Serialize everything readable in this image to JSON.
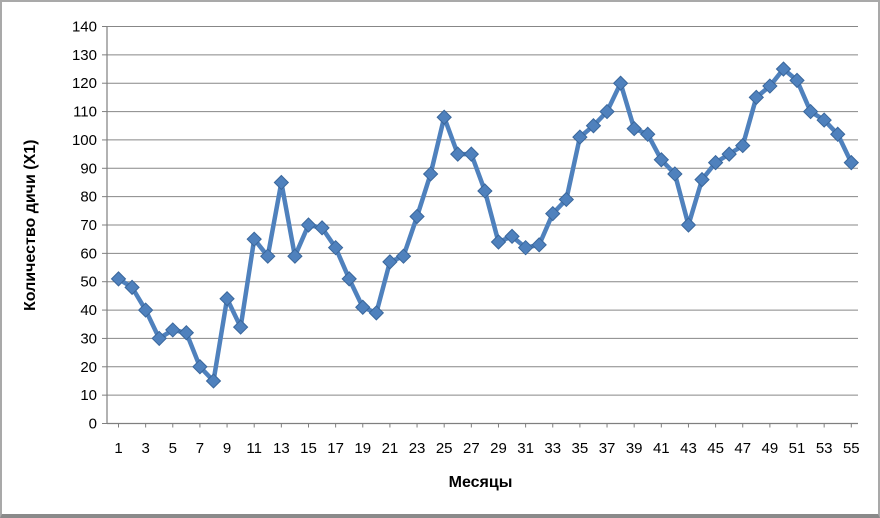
{
  "window": {
    "background": "#ffffff",
    "border_color": "#a9a9a9"
  },
  "chart_data": {
    "type": "line",
    "title": "",
    "xlabel": "Месяцы",
    "ylabel": "Количество дичи (Х1)",
    "x": [
      1,
      2,
      3,
      4,
      5,
      6,
      7,
      8,
      9,
      10,
      11,
      12,
      13,
      14,
      15,
      16,
      17,
      18,
      19,
      20,
      21,
      22,
      23,
      24,
      25,
      26,
      27,
      28,
      29,
      30,
      31,
      32,
      33,
      34,
      35,
      36,
      37,
      38,
      39,
      40,
      41,
      42,
      43,
      44,
      45,
      46,
      47,
      48,
      49,
      50,
      51,
      52,
      53,
      54,
      55
    ],
    "series": [
      {
        "values": [
          51,
          48,
          40,
          30,
          33,
          32,
          20,
          15,
          44,
          34,
          65,
          59,
          85,
          59,
          70,
          69,
          62,
          51,
          41,
          39,
          57,
          59,
          73,
          88,
          108,
          95,
          95,
          82,
          64,
          66,
          62,
          63,
          74,
          79,
          101,
          105,
          110,
          120,
          104,
          102,
          93,
          88,
          70,
          86,
          92,
          95,
          98,
          115,
          119,
          125,
          121,
          110,
          107,
          102,
          92
        ],
        "color": "#4f81bd",
        "marker": "diamond",
        "marker_edge_color": "#3a679c",
        "line_width": 4.5
      }
    ],
    "xlim": [
      0,
      56
    ],
    "ylim": [
      0,
      140
    ],
    "y_ticks": [
      0,
      10,
      20,
      30,
      40,
      50,
      60,
      70,
      80,
      90,
      100,
      110,
      120,
      130,
      140
    ],
    "x_tick_labels": [
      1,
      3,
      5,
      7,
      9,
      11,
      13,
      15,
      17,
      19,
      21,
      23,
      25,
      27,
      29,
      31,
      33,
      35,
      37,
      39,
      41,
      43,
      45,
      47,
      49,
      51,
      53,
      55
    ],
    "grid": "horizontal",
    "legend": "none",
    "gridline_color": "#878787",
    "axis_color": "#7f7f7f",
    "text_color": "#000000"
  }
}
